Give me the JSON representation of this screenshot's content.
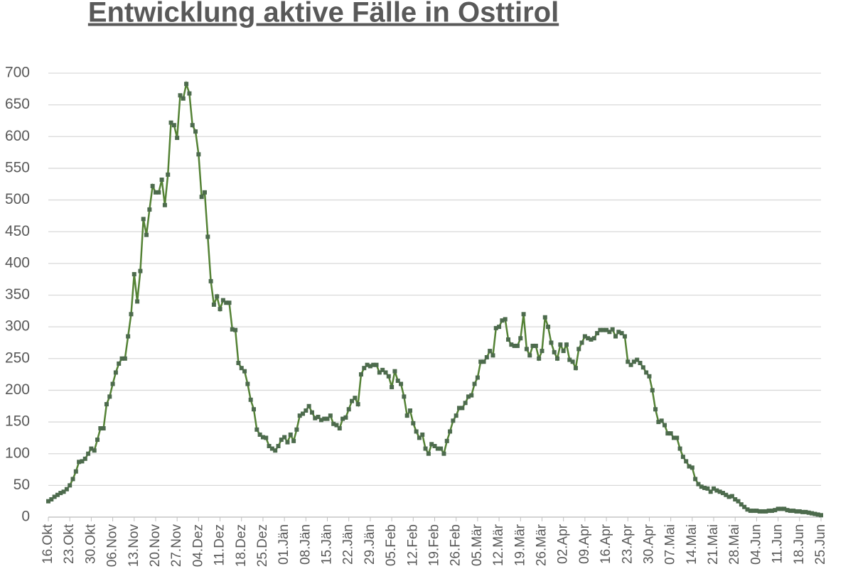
{
  "chart_data": {
    "type": "line",
    "title": "Entwicklung aktive Fälle in Osttirol",
    "categories": [
      "16.Okt",
      null,
      null,
      null,
      null,
      null,
      null,
      "23.Okt",
      null,
      null,
      null,
      null,
      null,
      null,
      "30.Okt",
      null,
      null,
      null,
      null,
      null,
      null,
      "06.Nov",
      null,
      null,
      null,
      null,
      null,
      null,
      "13.Nov",
      null,
      null,
      null,
      null,
      null,
      null,
      "20.Nov",
      null,
      null,
      null,
      null,
      null,
      null,
      "27.Nov",
      null,
      null,
      null,
      null,
      null,
      null,
      "04.Dez",
      null,
      null,
      null,
      null,
      null,
      null,
      "11.Dez",
      null,
      null,
      null,
      null,
      null,
      null,
      "18.Dez",
      null,
      null,
      null,
      null,
      null,
      null,
      "25.Dez",
      null,
      null,
      null,
      null,
      null,
      null,
      "01.Jän",
      null,
      null,
      null,
      null,
      null,
      null,
      "08.Jän",
      null,
      null,
      null,
      null,
      null,
      null,
      "15.Jän",
      null,
      null,
      null,
      null,
      null,
      null,
      "22.Jän",
      null,
      null,
      null,
      null,
      null,
      null,
      "29.Jän",
      null,
      null,
      null,
      null,
      null,
      null,
      "05.Feb",
      null,
      null,
      null,
      null,
      null,
      null,
      "12.Feb",
      null,
      null,
      null,
      null,
      null,
      null,
      "19.Feb",
      null,
      null,
      null,
      null,
      null,
      null,
      "26.Feb",
      null,
      null,
      null,
      null,
      null,
      null,
      "05.Mär",
      null,
      null,
      null,
      null,
      null,
      null,
      "12.Mär",
      null,
      null,
      null,
      null,
      null,
      null,
      "19.Mär",
      null,
      null,
      null,
      null,
      null,
      null,
      "26.Mär",
      null,
      null,
      null,
      null,
      null,
      null,
      "02.Apr",
      null,
      null,
      null,
      null,
      null,
      null,
      "09.Apr",
      null,
      null,
      null,
      null,
      null,
      null,
      "16.Apr",
      null,
      null,
      null,
      null,
      null,
      null,
      "23.Apr",
      null,
      null,
      null,
      null,
      null,
      null,
      "30.Apr",
      null,
      null,
      null,
      null,
      null,
      null,
      "07.Mai",
      null,
      null,
      null,
      null,
      null,
      null,
      "14.Mai",
      null,
      null,
      null,
      null,
      null,
      null,
      "21.Mai",
      null,
      null,
      null,
      null,
      null,
      null,
      "28.Mai",
      null,
      null,
      null,
      null,
      null,
      null,
      "04.Jun",
      null,
      null,
      null,
      null,
      null,
      null,
      "11.Jun",
      null,
      null,
      null,
      null,
      null,
      null,
      "18.Jun",
      null,
      null,
      null,
      null,
      null,
      null,
      "25.Jun"
    ],
    "series": [
      {
        "color": "#548235",
        "marker_color": "#4d6b4d",
        "values": [
          25,
          28,
          32,
          35,
          38,
          40,
          44,
          50,
          60,
          72,
          87,
          88,
          92,
          100,
          108,
          105,
          122,
          140,
          140,
          178,
          190,
          210,
          228,
          242,
          250,
          250,
          285,
          320,
          383,
          340,
          388,
          470,
          445,
          485,
          522,
          512,
          512,
          532,
          492,
          540,
          622,
          618,
          598,
          665,
          660,
          683,
          668,
          618,
          608,
          572,
          505,
          512,
          442,
          372,
          335,
          348,
          328,
          342,
          338,
          338,
          296,
          295,
          243,
          235,
          230,
          210,
          185,
          170,
          138,
          130,
          126,
          125,
          112,
          108,
          105,
          112,
          122,
          126,
          118,
          130,
          120,
          138,
          160,
          163,
          168,
          175,
          165,
          156,
          158,
          153,
          155,
          155,
          160,
          147,
          145,
          140,
          155,
          157,
          170,
          183,
          188,
          178,
          225,
          235,
          240,
          238,
          240,
          240,
          228,
          232,
          228,
          222,
          205,
          230,
          215,
          210,
          190,
          160,
          168,
          148,
          135,
          125,
          130,
          108,
          100,
          115,
          112,
          108,
          108,
          100,
          120,
          135,
          152,
          160,
          172,
          172,
          180,
          190,
          192,
          210,
          220,
          245,
          245,
          252,
          262,
          255,
          298,
          300,
          310,
          312,
          280,
          272,
          270,
          270,
          282,
          320,
          265,
          255,
          270,
          270,
          250,
          262,
          315,
          300,
          275,
          260,
          250,
          272,
          262,
          272,
          248,
          245,
          235,
          265,
          275,
          285,
          282,
          280,
          282,
          290,
          295,
          295,
          295,
          292,
          296,
          285,
          292,
          290,
          285,
          245,
          240,
          245,
          248,
          243,
          236,
          228,
          222,
          200,
          170,
          150,
          152,
          145,
          132,
          132,
          125,
          125,
          108,
          95,
          88,
          80,
          78,
          60,
          52,
          48,
          46,
          45,
          40,
          45,
          42,
          40,
          38,
          35,
          32,
          33,
          28,
          25,
          20,
          16,
          12,
          10,
          10,
          10,
          9,
          9,
          9,
          10,
          10,
          11,
          13,
          13,
          13,
          11,
          10,
          10,
          9,
          9,
          8,
          8,
          7,
          6,
          5,
          4,
          3
        ]
      }
    ],
    "ylim": [
      0,
      700
    ],
    "yticks": [
      0,
      50,
      100,
      150,
      200,
      250,
      300,
      350,
      400,
      450,
      500,
      550,
      600,
      650,
      700
    ],
    "grid": true
  }
}
